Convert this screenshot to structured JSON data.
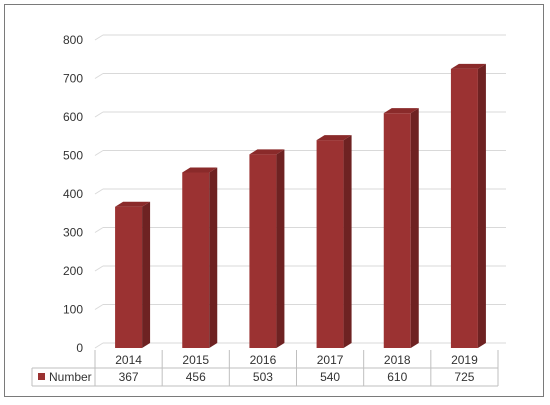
{
  "chart_data": {
    "type": "bar",
    "categories": [
      "2014",
      "2015",
      "2016",
      "2017",
      "2018",
      "2019"
    ],
    "series": [
      {
        "name": "Number",
        "values": [
          367,
          456,
          503,
          540,
          610,
          725
        ]
      }
    ],
    "ylim": [
      0,
      800
    ],
    "yticks": [
      0,
      100,
      200,
      300,
      400,
      500,
      600,
      700,
      800
    ],
    "grid": true,
    "legend": "data-table-left",
    "data_table": true,
    "three_d": true,
    "colors": {
      "bar_front": "#9b3232",
      "bar_side": "#6e2222",
      "bar_top": "#8a2a2a",
      "grid": "#d9d9d9",
      "table_border": "#bfbfbf",
      "frame": "#7a7a7a"
    }
  }
}
